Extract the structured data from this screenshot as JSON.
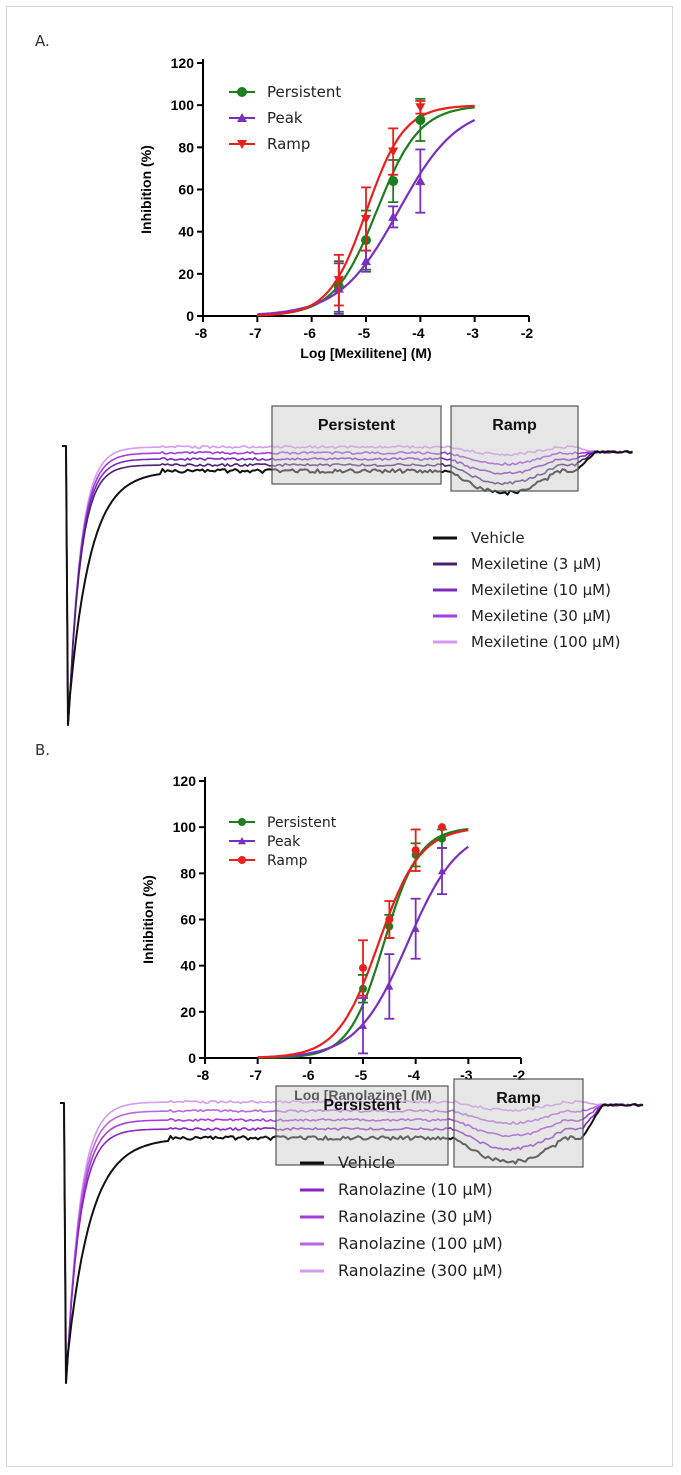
{
  "panels": [
    {
      "label": "A.",
      "trace_legend": [
        "Vehicle",
        "Mexiletine (3 µM)",
        "Mexiletine (10 µM)",
        "Mexiletine (30 µM)",
        "Mexiletine (100 µM)"
      ],
      "trace_colors": [
        "#111111",
        "#4b2173",
        "#7b2cbf",
        "#a43de0",
        "#d79af2"
      ],
      "box_labels": [
        "Persistent",
        "Ramp"
      ]
    },
    {
      "label": "B.",
      "trace_legend": [
        "Vehicle",
        "Ranolazine (10 µM)",
        "Ranolazine (30 µM)",
        "Ranolazine (100 µM)",
        "Ranolazine (300 µM)"
      ],
      "trace_colors": [
        "#111111",
        "#8a24c4",
        "#a63fd8",
        "#b967e0",
        "#d49aef"
      ],
      "box_labels": [
        "Persistent",
        "Ramp"
      ]
    }
  ],
  "chart_data": [
    {
      "type": "scatter",
      "subtype": "dose-response with fitted curves",
      "xlabel": "Log [Mexilitene] (M)",
      "ylabel": "Inhibition (%)",
      "xlim": [
        -8,
        -2
      ],
      "ylim": [
        0,
        120
      ],
      "xticks": [
        "-8",
        "-7",
        "-6",
        "-5",
        "-4",
        "-3",
        "-2"
      ],
      "yticks": [
        "0",
        "20",
        "40",
        "60",
        "80",
        "100",
        "120"
      ],
      "legend_position": "top-left",
      "series": [
        {
          "name": "Persistent",
          "color": "#1e7d1e",
          "marker": "circle",
          "x": [
            -5.5,
            -5.0,
            -4.5,
            -4.0
          ],
          "y": [
            14,
            36,
            64,
            93
          ],
          "err": [
            12,
            14,
            10,
            10
          ],
          "fit": {
            "logIC50": -4.8,
            "hill": 1.1
          }
        },
        {
          "name": "Peak",
          "color": "#7a2fc0",
          "marker": "triangle-up",
          "x": [
            -5.5,
            -5.0,
            -4.5,
            -4.0
          ],
          "y": [
            13,
            26,
            47,
            64
          ],
          "err": [
            12,
            5,
            5,
            15
          ],
          "fit": {
            "logIC50": -4.4,
            "hill": 0.8
          }
        },
        {
          "name": "Ramp",
          "color": "#e8201c",
          "marker": "triangle-down",
          "x": [
            -5.5,
            -5.0,
            -4.5,
            -4.0
          ],
          "y": [
            17,
            46,
            78,
            99
          ],
          "err": [
            12,
            15,
            11,
            3
          ],
          "fit": {
            "logIC50": -4.99,
            "hill": 1.25
          }
        }
      ]
    },
    {
      "type": "scatter",
      "subtype": "dose-response with fitted curves",
      "xlabel": "Log [Ranolazine] (M)",
      "ylabel": "Inhibition (%)",
      "xlim": [
        -8,
        -2
      ],
      "ylim": [
        0,
        120
      ],
      "xticks": [
        "-8",
        "-7",
        "-6",
        "-5",
        "-4",
        "-3",
        "-2"
      ],
      "yticks": [
        "0",
        "20",
        "40",
        "60",
        "80",
        "100",
        "120"
      ],
      "legend_position": "top-left",
      "series": [
        {
          "name": "Persistent",
          "color": "#1e7d1e",
          "marker": "circle",
          "x": [
            -5.0,
            -4.5,
            -4.0,
            -3.5
          ],
          "y": [
            30,
            57,
            88,
            95
          ],
          "err": [
            6,
            5,
            5,
            4
          ],
          "fit": {
            "logIC50": -4.6,
            "hill": 1.3
          }
        },
        {
          "name": "Peak",
          "color": "#7a2fc0",
          "marker": "triangle-up",
          "x": [
            -5.0,
            -4.5,
            -4.0,
            -3.5
          ],
          "y": [
            14,
            31,
            56,
            81
          ],
          "err": [
            12,
            14,
            13,
            10
          ],
          "fit": {
            "logIC50": -4.15,
            "hill": 0.9
          }
        },
        {
          "name": "Ramp",
          "color": "#e8201c",
          "marker": "circle",
          "x": [
            -5.0,
            -4.5,
            -4.0,
            -3.5
          ],
          "y": [
            39,
            60,
            90,
            100
          ],
          "err": [
            12,
            8,
            9,
            0
          ],
          "fit": {
            "logIC50": -4.7,
            "hill": 1.1
          }
        }
      ]
    }
  ]
}
